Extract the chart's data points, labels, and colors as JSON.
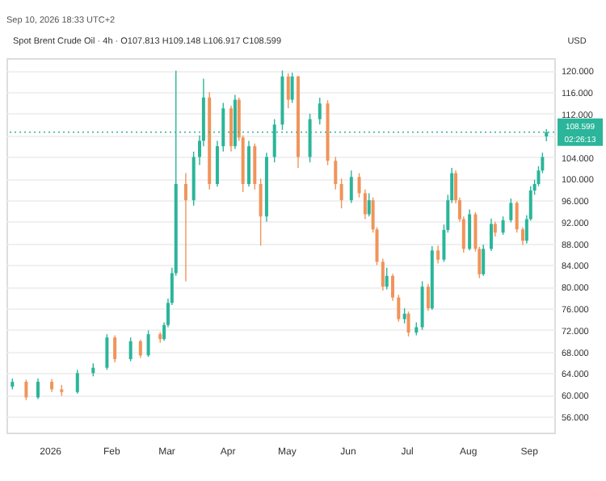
{
  "chart_data": {
    "type": "candlestick",
    "title": "Spot Brent Crude Oil · 4h · O107.813 H109.148 L106.917 C108.599",
    "ylabel": "USD",
    "annotations": [
      "Sep 10, 2026 18:33 UTC+2",
      "02:26:13"
    ],
    "x": [
      "2025-12-13",
      "2025-12-20",
      "2025-12-26",
      "2026-01-02",
      "2026-01-07",
      "2026-01-15",
      "2026-01-23",
      "2026-01-30",
      "2026-02-03",
      "2026-02-11",
      "2026-02-16",
      "2026-02-20",
      "2026-02-26",
      "2026-02-28",
      "2026-03-02",
      "2026-03-04",
      "2026-03-06",
      "2026-03-11",
      "2026-03-15",
      "2026-03-18",
      "2026-03-20",
      "2026-03-23",
      "2026-03-27",
      "2026-03-30",
      "2026-04-03",
      "2026-04-05",
      "2026-04-07",
      "2026-04-09",
      "2026-04-12",
      "2026-04-15",
      "2026-04-18",
      "2026-04-21",
      "2026-04-25",
      "2026-04-29",
      "2026-05-02",
      "2026-05-04",
      "2026-05-07",
      "2026-05-13",
      "2026-05-18",
      "2026-05-22",
      "2026-05-26",
      "2026-05-29",
      "2026-06-03",
      "2026-06-07",
      "2026-06-10",
      "2026-06-12",
      "2026-06-14",
      "2026-06-16",
      "2026-06-19",
      "2026-06-21",
      "2026-06-24",
      "2026-06-27",
      "2026-06-30",
      "2026-07-02",
      "2026-07-06",
      "2026-07-09",
      "2026-07-12",
      "2026-07-14",
      "2026-07-17",
      "2026-07-20",
      "2026-07-22",
      "2026-07-24",
      "2026-07-26",
      "2026-07-28",
      "2026-07-30",
      "2026-08-02",
      "2026-08-05",
      "2026-08-07",
      "2026-08-09",
      "2026-08-13",
      "2026-08-15",
      "2026-08-19",
      "2026-08-23",
      "2026-08-26",
      "2026-08-29",
      "2026-08-31",
      "2026-09-02",
      "2026-09-04",
      "2026-09-06",
      "2026-09-08",
      "2026-09-10"
    ],
    "ohlc": [
      [
        61.5,
        63,
        61,
        62.4
      ],
      [
        62.4,
        62.8,
        59,
        59.5
      ],
      [
        59.5,
        63,
        59.2,
        62.4
      ],
      [
        62.4,
        62.9,
        60.5,
        61
      ],
      [
        61,
        61.8,
        59.8,
        60.5
      ],
      [
        60.5,
        64.6,
        60.2,
        64
      ],
      [
        64,
        65.8,
        63.4,
        65
      ],
      [
        65,
        71.2,
        64.6,
        70.6
      ],
      [
        70.6,
        71,
        66,
        66.6
      ],
      [
        66.6,
        70.6,
        66.2,
        69.9
      ],
      [
        69.9,
        70.2,
        66.8,
        67.3
      ],
      [
        67.3,
        71.9,
        67,
        71.2
      ],
      [
        71.2,
        71.6,
        69.6,
        70.3
      ],
      [
        70.3,
        73.4,
        70,
        72.9
      ],
      [
        72.9,
        77.8,
        72.5,
        77
      ],
      [
        77,
        83.5,
        76.6,
        82.5
      ],
      [
        82.5,
        120,
        82,
        99
      ],
      [
        99,
        101,
        81,
        96
      ],
      [
        96,
        105,
        95,
        104
      ],
      [
        104,
        108,
        102.5,
        107
      ],
      [
        107,
        118.5,
        106,
        115
      ],
      [
        115,
        116,
        98,
        99
      ],
      [
        99,
        107,
        98.5,
        106
      ],
      [
        106,
        114,
        105,
        113
      ],
      [
        113,
        113.5,
        105,
        106
      ],
      [
        106,
        115.5,
        105.5,
        114.6
      ],
      [
        114.6,
        115,
        107,
        107.6
      ],
      [
        107.6,
        108,
        97.5,
        99
      ],
      [
        99,
        107,
        98.5,
        106
      ],
      [
        106,
        106.5,
        98,
        99
      ],
      [
        99,
        100,
        87.6,
        93
      ],
      [
        93,
        104.8,
        92,
        104
      ],
      [
        104,
        111,
        103,
        110
      ],
      [
        110,
        120,
        109,
        118.9
      ],
      [
        118.9,
        119.5,
        113,
        114.6
      ],
      [
        114.6,
        119.6,
        114,
        118.9
      ],
      [
        118.9,
        119,
        102,
        104
      ],
      [
        104,
        112,
        103,
        111
      ],
      [
        111,
        115,
        110,
        113.9
      ],
      [
        113.9,
        114.5,
        102.5,
        103.3
      ],
      [
        103.3,
        104,
        98,
        99
      ],
      [
        99,
        100,
        94.5,
        96
      ],
      [
        96,
        101.5,
        95.5,
        100.3
      ],
      [
        100.3,
        101,
        96.5,
        97.3
      ],
      [
        97.3,
        98,
        92.5,
        93.4
      ],
      [
        93.4,
        97.3,
        93,
        96
      ],
      [
        96,
        96.5,
        90,
        90.6
      ],
      [
        90.6,
        91,
        84,
        84.6
      ],
      [
        84.6,
        85.2,
        79.3,
        80
      ],
      [
        80,
        83.5,
        79.5,
        82
      ],
      [
        82,
        82.4,
        77.4,
        78
      ],
      [
        78,
        78.5,
        73.5,
        74
      ],
      [
        74,
        76,
        73.2,
        75
      ],
      [
        75,
        75.4,
        70.8,
        71.5
      ],
      [
        71.5,
        73.4,
        71,
        72.5
      ],
      [
        72.5,
        81,
        72,
        80
      ],
      [
        80,
        80.5,
        75.5,
        76
      ],
      [
        76,
        87.5,
        75.7,
        86.7
      ],
      [
        86.7,
        87.6,
        84.3,
        85
      ],
      [
        85,
        91.5,
        84.6,
        90.5
      ],
      [
        90.5,
        97,
        90,
        96
      ],
      [
        96,
        102,
        95.5,
        101
      ],
      [
        101,
        101.5,
        95.4,
        96
      ],
      [
        96,
        96.5,
        92,
        92.5
      ],
      [
        92.5,
        93,
        86.3,
        87
      ],
      [
        87,
        94.3,
        86.7,
        93.4
      ],
      [
        93.4,
        93.8,
        86.5,
        87
      ],
      [
        87,
        87.4,
        81.6,
        82.3
      ],
      [
        82.3,
        87.8,
        82,
        87
      ],
      [
        87,
        92.6,
        86.6,
        91.6
      ],
      [
        91.6,
        92,
        89.3,
        90
      ],
      [
        90,
        93,
        89.6,
        92.3
      ],
      [
        92.3,
        96.3,
        91.9,
        95.5
      ],
      [
        95.5,
        95.8,
        90,
        90.6
      ],
      [
        90.6,
        91,
        87.7,
        88.5
      ],
      [
        88.5,
        93.2,
        88,
        92.5
      ],
      [
        92.5,
        98.6,
        92.2,
        97.8
      ],
      [
        97.8,
        99.8,
        97,
        99
      ],
      [
        99,
        102.3,
        98.6,
        101.5
      ],
      [
        101.5,
        104.8,
        101,
        104
      ],
      [
        107.813,
        109.148,
        106.917,
        108.599
      ]
    ],
    "colors": [
      "#2bb59a",
      "#f0945a",
      "#2bb59a",
      "#f0945a",
      "#f0945a",
      "#2bb59a",
      "#2bb59a",
      "#2bb59a",
      "#f0945a",
      "#2bb59a",
      "#f0945a",
      "#2bb59a",
      "#f0945a",
      "#2bb59a",
      "#2bb59a",
      "#2bb59a",
      "#2bb59a",
      "#f0945a",
      "#2bb59a",
      "#2bb59a",
      "#2bb59a",
      "#f0945a",
      "#2bb59a",
      "#2bb59a",
      "#f0945a",
      "#2bb59a",
      "#f0945a",
      "#f0945a",
      "#2bb59a",
      "#f0945a",
      "#f0945a",
      "#2bb59a",
      "#2bb59a",
      "#2bb59a",
      "#f0945a",
      "#2bb59a",
      "#f0945a",
      "#2bb59a",
      "#2bb59a",
      "#f0945a",
      "#f0945a",
      "#f0945a",
      "#2bb59a",
      "#f0945a",
      "#f0945a",
      "#2bb59a",
      "#f0945a",
      "#f0945a",
      "#f0945a",
      "#2bb59a",
      "#f0945a",
      "#f0945a",
      "#2bb59a",
      "#f0945a",
      "#2bb59a",
      "#2bb59a",
      "#f0945a",
      "#2bb59a",
      "#f0945a",
      "#2bb59a",
      "#2bb59a",
      "#2bb59a",
      "#f0945a",
      "#f0945a",
      "#f0945a",
      "#2bb59a",
      "#f0945a",
      "#f0945a",
      "#2bb59a",
      "#2bb59a",
      "#f0945a",
      "#2bb59a",
      "#2bb59a",
      "#f0945a",
      "#f0945a",
      "#2bb59a",
      "#2bb59a",
      "#2bb59a",
      "#2bb59a",
      "#2bb59a",
      "#2bb59a"
    ],
    "xlim": [
      "2025-12-10",
      "2026-09-14"
    ],
    "xticks": [
      {
        "value": "2026-01-01",
        "label": "2026"
      },
      {
        "value": "2026-02-01",
        "label": "Feb"
      },
      {
        "value": "2026-03-01",
        "label": "Mar"
      },
      {
        "value": "2026-04-01",
        "label": "Apr"
      },
      {
        "value": "2026-05-01",
        "label": "May"
      },
      {
        "value": "2026-06-01",
        "label": "Jun"
      },
      {
        "value": "2026-07-01",
        "label": "Jul"
      },
      {
        "value": "2026-08-01",
        "label": "Aug"
      },
      {
        "value": "2026-09-01",
        "label": "Sep"
      }
    ],
    "ylim": [
      53,
      122.3
    ],
    "yticks": [
      {
        "value": 56,
        "label": "56.000"
      },
      {
        "value": 60,
        "label": "60.000"
      },
      {
        "value": 64,
        "label": "64.000"
      },
      {
        "value": 68,
        "label": "68.000"
      },
      {
        "value": 72,
        "label": "72.000"
      },
      {
        "value": 76,
        "label": "76.000"
      },
      {
        "value": 80,
        "label": "80.000"
      },
      {
        "value": 84,
        "label": "84.000"
      },
      {
        "value": 88,
        "label": "88.000"
      },
      {
        "value": 92,
        "label": "92.000"
      },
      {
        "value": 96,
        "label": "96.000"
      },
      {
        "value": 100,
        "label": "100.000"
      },
      {
        "value": 104,
        "label": "104.000"
      },
      {
        "value": 108,
        "label": null
      },
      {
        "value": 112,
        "label": "112.000"
      },
      {
        "value": 116,
        "label": "116.000"
      },
      {
        "value": 120,
        "label": "120.000"
      }
    ],
    "ref_lines": [
      {
        "axis": "y",
        "value": 108.599,
        "label": "108.599",
        "color": "#2bb59a",
        "line_style": "dotted"
      }
    ],
    "grid": "y"
  }
}
